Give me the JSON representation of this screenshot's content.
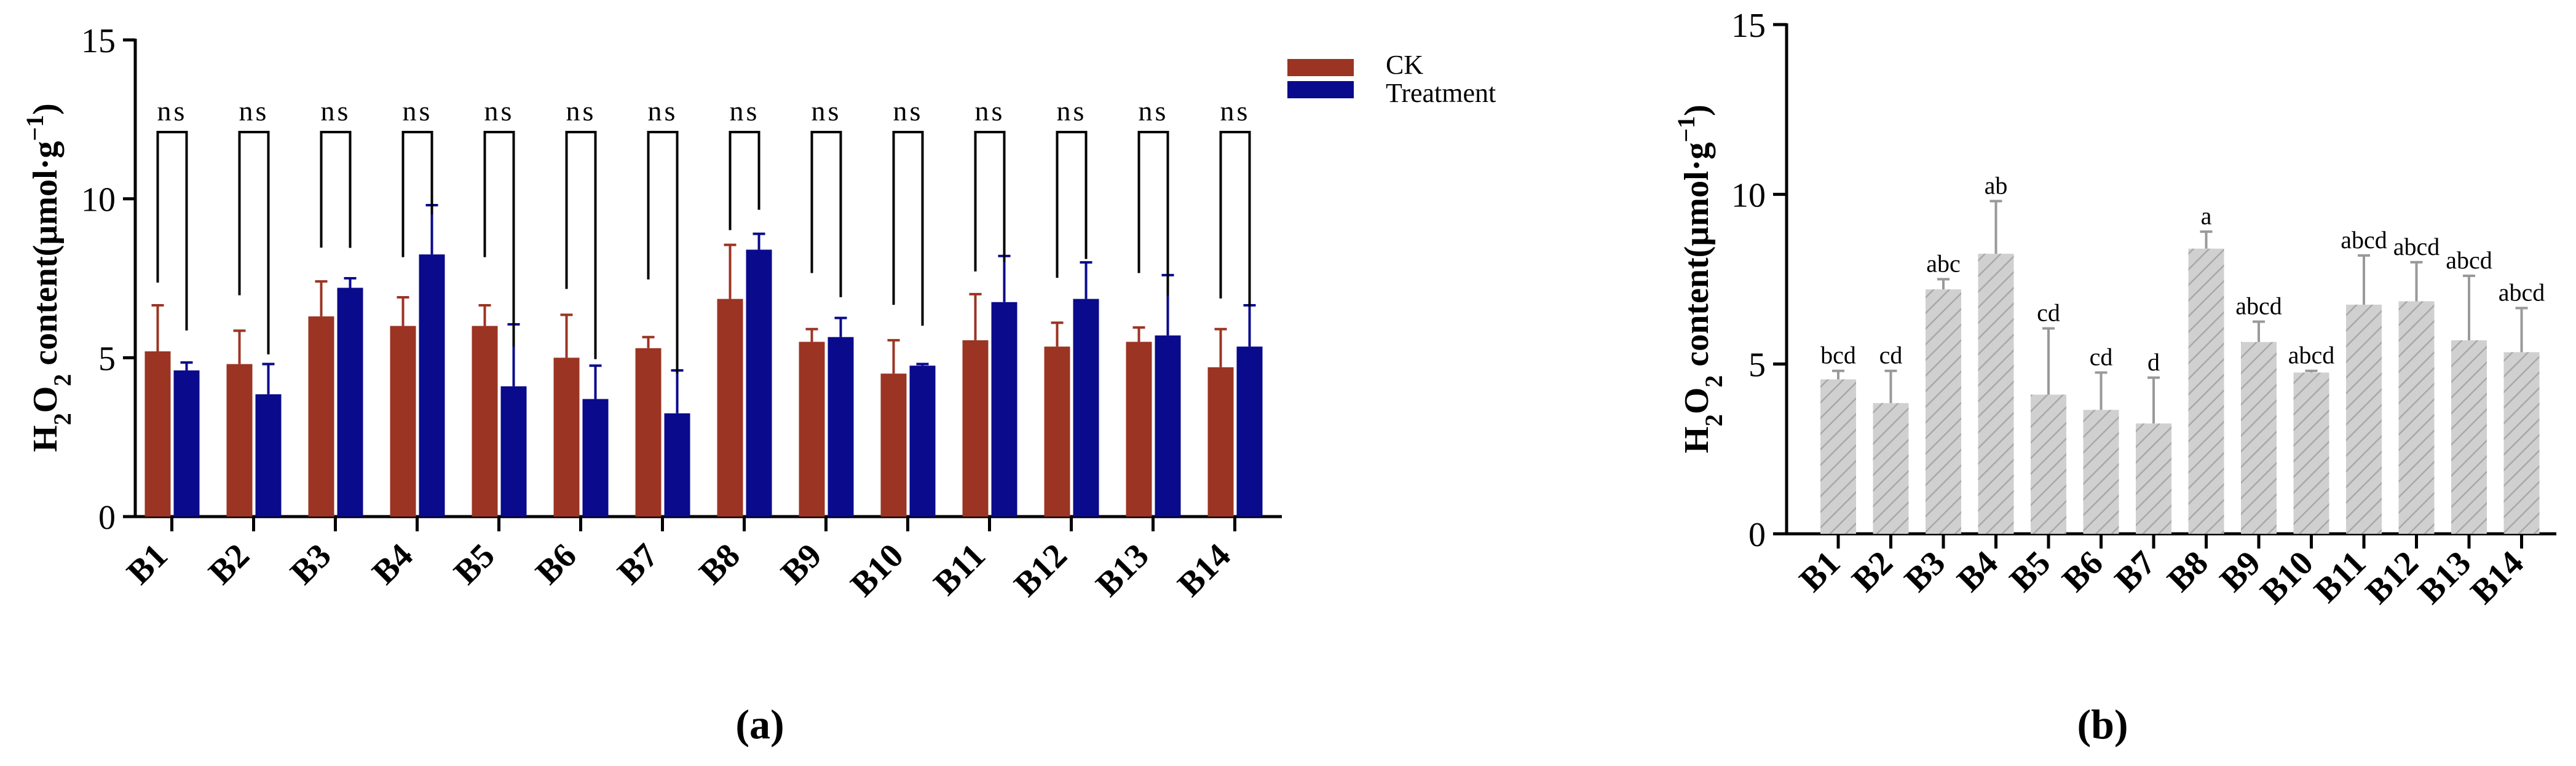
{
  "colors": {
    "ck": "#9b3423",
    "treatment": "#0a0a8c",
    "hatch_fill": "#d0d0d0",
    "hatch_line": "#a8a8a8",
    "error_grey": "#999999",
    "axis": "#000000"
  },
  "chart_data": [
    {
      "id": "a",
      "type": "bar",
      "panel_label": "(a)",
      "title": "",
      "xlabel": "",
      "ylabel": "H2O2 content(µmol·g−1)",
      "ylim": [
        0,
        15
      ],
      "yticks": [
        "0",
        "5",
        "10",
        "15"
      ],
      "categories": [
        "B1",
        "B2",
        "B3",
        "B4",
        "B5",
        "B6",
        "B7",
        "B8",
        "B9",
        "B10",
        "B11",
        "B12",
        "B13",
        "B14"
      ],
      "series": [
        {
          "name": "CK",
          "values": [
            5.2,
            4.8,
            6.3,
            6.0,
            6.0,
            5.0,
            5.3,
            6.85,
            5.5,
            4.5,
            5.55,
            5.35,
            5.5,
            4.7
          ],
          "errors": [
            1.45,
            1.05,
            1.1,
            0.9,
            0.65,
            1.35,
            0.35,
            1.7,
            0.4,
            1.05,
            1.45,
            0.75,
            0.45,
            1.2
          ]
        },
        {
          "name": "Treatment",
          "values": [
            4.6,
            3.85,
            7.2,
            8.25,
            4.1,
            3.7,
            3.25,
            8.4,
            5.65,
            4.75,
            6.75,
            6.85,
            5.7,
            5.35
          ],
          "errors": [
            0.25,
            0.95,
            0.3,
            1.55,
            1.95,
            1.05,
            1.35,
            0.5,
            0.6,
            0.05,
            1.45,
            1.15,
            1.9,
            1.3
          ]
        }
      ],
      "significance": [
        "ns",
        "ns",
        "ns",
        "ns",
        "ns",
        "ns",
        "ns",
        "ns",
        "ns",
        "ns",
        "ns",
        "ns",
        "ns",
        "ns"
      ],
      "legend_position": "top-right"
    },
    {
      "id": "b",
      "type": "bar",
      "panel_label": "(b)",
      "title": "",
      "xlabel": "",
      "ylabel": "H2O2 content(µmol·g−1)",
      "ylim": [
        0,
        15
      ],
      "yticks": [
        "0",
        "5",
        "10",
        "15"
      ],
      "categories": [
        "B1",
        "B2",
        "B3",
        "B4",
        "B5",
        "B6",
        "B7",
        "B8",
        "B9",
        "B10",
        "B11",
        "B12",
        "B13",
        "B14"
      ],
      "values": [
        4.55,
        3.85,
        7.2,
        8.25,
        4.1,
        3.65,
        3.25,
        8.4,
        5.65,
        4.75,
        6.75,
        6.85,
        5.7,
        5.35
      ],
      "errors": [
        0.25,
        0.95,
        0.3,
        1.55,
        1.95,
        1.1,
        1.35,
        0.5,
        0.6,
        0.05,
        1.45,
        1.15,
        1.9,
        1.3
      ],
      "letters": [
        "bcd",
        "cd",
        "abc",
        "ab",
        "cd",
        "cd",
        "d",
        "a",
        "abcd",
        "abcd",
        "abcd",
        "abcd",
        "abcd",
        "abcd"
      ]
    }
  ]
}
